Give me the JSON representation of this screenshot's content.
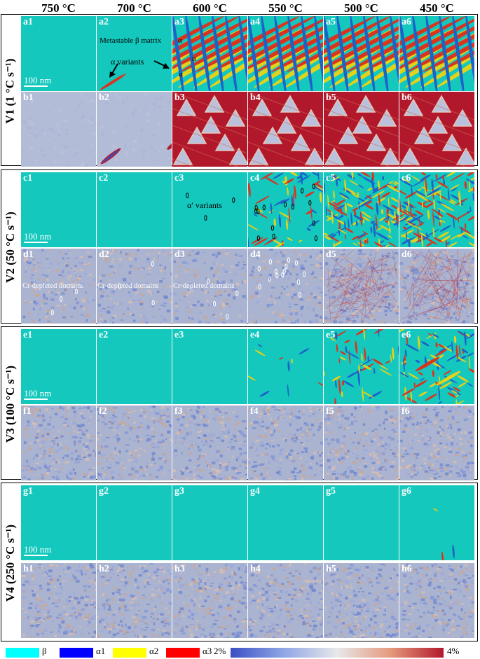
{
  "colors": {
    "beta": "#14c8bd",
    "alpha1": "#1b62c9",
    "alpha2": "#e3d21a",
    "alpha3": "#d8341f",
    "conc_bg": "#aab3cf",
    "conc_low": "#3b4fc4",
    "conc_high": "#b2182b",
    "legend_beta": "#00ffff",
    "legend_alpha1": "#0000ff",
    "legend_alpha2": "#ffff00",
    "legend_alpha3": "#ff0000"
  },
  "temperatures": [
    "750 °C",
    "700 °C",
    "600 °C",
    "550 °C",
    "500 °C",
    "450 °C"
  ],
  "rows": [
    {
      "label": "V1 (1 °C s⁻¹)",
      "phase_labels": [
        "a1",
        "a2",
        "a3",
        "a4",
        "a5",
        "a6"
      ],
      "conc_labels": [
        "b1",
        "b2",
        "b3",
        "b4",
        "b5",
        "b6"
      ]
    },
    {
      "label": "V2 (50 °C s⁻¹)",
      "phase_labels": [
        "c1",
        "c2",
        "c3",
        "c4",
        "c5",
        "c6"
      ],
      "conc_labels": [
        "d1",
        "d2",
        "d3",
        "d4",
        "d5",
        "d6"
      ]
    },
    {
      "label": "V3 (100 °C s⁻¹)",
      "phase_labels": [
        "e1",
        "e2",
        "e3",
        "e4",
        "e5",
        "e6"
      ],
      "conc_labels": [
        "f1",
        "f2",
        "f3",
        "f4",
        "f5",
        "f6"
      ]
    },
    {
      "label": "V4 (250 °C s⁻¹)",
      "phase_labels": [
        "g1",
        "g2",
        "g3",
        "g4",
        "g5",
        "g6"
      ],
      "conc_labels": [
        "h1",
        "h2",
        "h3",
        "h4",
        "h5",
        "h6"
      ]
    }
  ],
  "annotations": {
    "scale_bar": "100 nm",
    "metastable": "Metastable β matrix",
    "alpha_variants": "α variants",
    "alpha_prime_variants": "α′ variants",
    "cr_depleted": "Cr-depleted domains",
    "alpha_glyph": "α"
  },
  "legend": {
    "beta": "β",
    "alpha1": "α1",
    "alpha2": "α2",
    "alpha3": "α3",
    "colorbar_min": "2%",
    "colorbar_max": "4%"
  }
}
